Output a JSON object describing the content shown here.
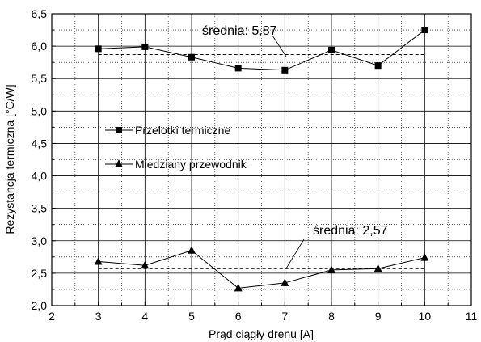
{
  "chart_data": {
    "type": "line",
    "xlabel": "Prąd ciągły drenu [A]",
    "ylabel": "Rezystancja termiczna [°C/W]",
    "xlim": [
      2,
      11
    ],
    "ylim": [
      2.0,
      6.5
    ],
    "x_ticks": [
      2,
      3,
      4,
      5,
      6,
      7,
      8,
      9,
      10,
      11
    ],
    "x_tick_labels": [
      "2",
      "3",
      "4",
      "5",
      "6",
      "7",
      "8",
      "9",
      "10",
      "11"
    ],
    "y_ticks": [
      2.0,
      2.5,
      3.0,
      3.5,
      4.0,
      4.5,
      5.0,
      5.5,
      6.0,
      6.5
    ],
    "y_tick_labels": [
      "2,0",
      "2,5",
      "3,0",
      "3,5",
      "4,0",
      "4,5",
      "5,0",
      "5,5",
      "6,0",
      "6,5"
    ],
    "grid": true,
    "legend_position": "left-middle",
    "series": [
      {
        "name": "Przelotki termiczne",
        "marker": "square",
        "x": [
          3,
          4,
          5,
          6,
          7,
          8,
          9,
          10
        ],
        "y": [
          5.96,
          5.99,
          5.83,
          5.66,
          5.63,
          5.94,
          5.7,
          6.25
        ],
        "mean": 5.87,
        "annotation": "średnia: 5,87"
      },
      {
        "name": "Miedziany przewodnik",
        "marker": "triangle",
        "x": [
          3,
          4,
          5,
          6,
          7,
          8,
          9,
          10
        ],
        "y": [
          2.68,
          2.62,
          2.85,
          2.27,
          2.35,
          2.55,
          2.57,
          2.74
        ],
        "mean": 2.57,
        "annotation": "średnia: 2,57"
      }
    ]
  }
}
